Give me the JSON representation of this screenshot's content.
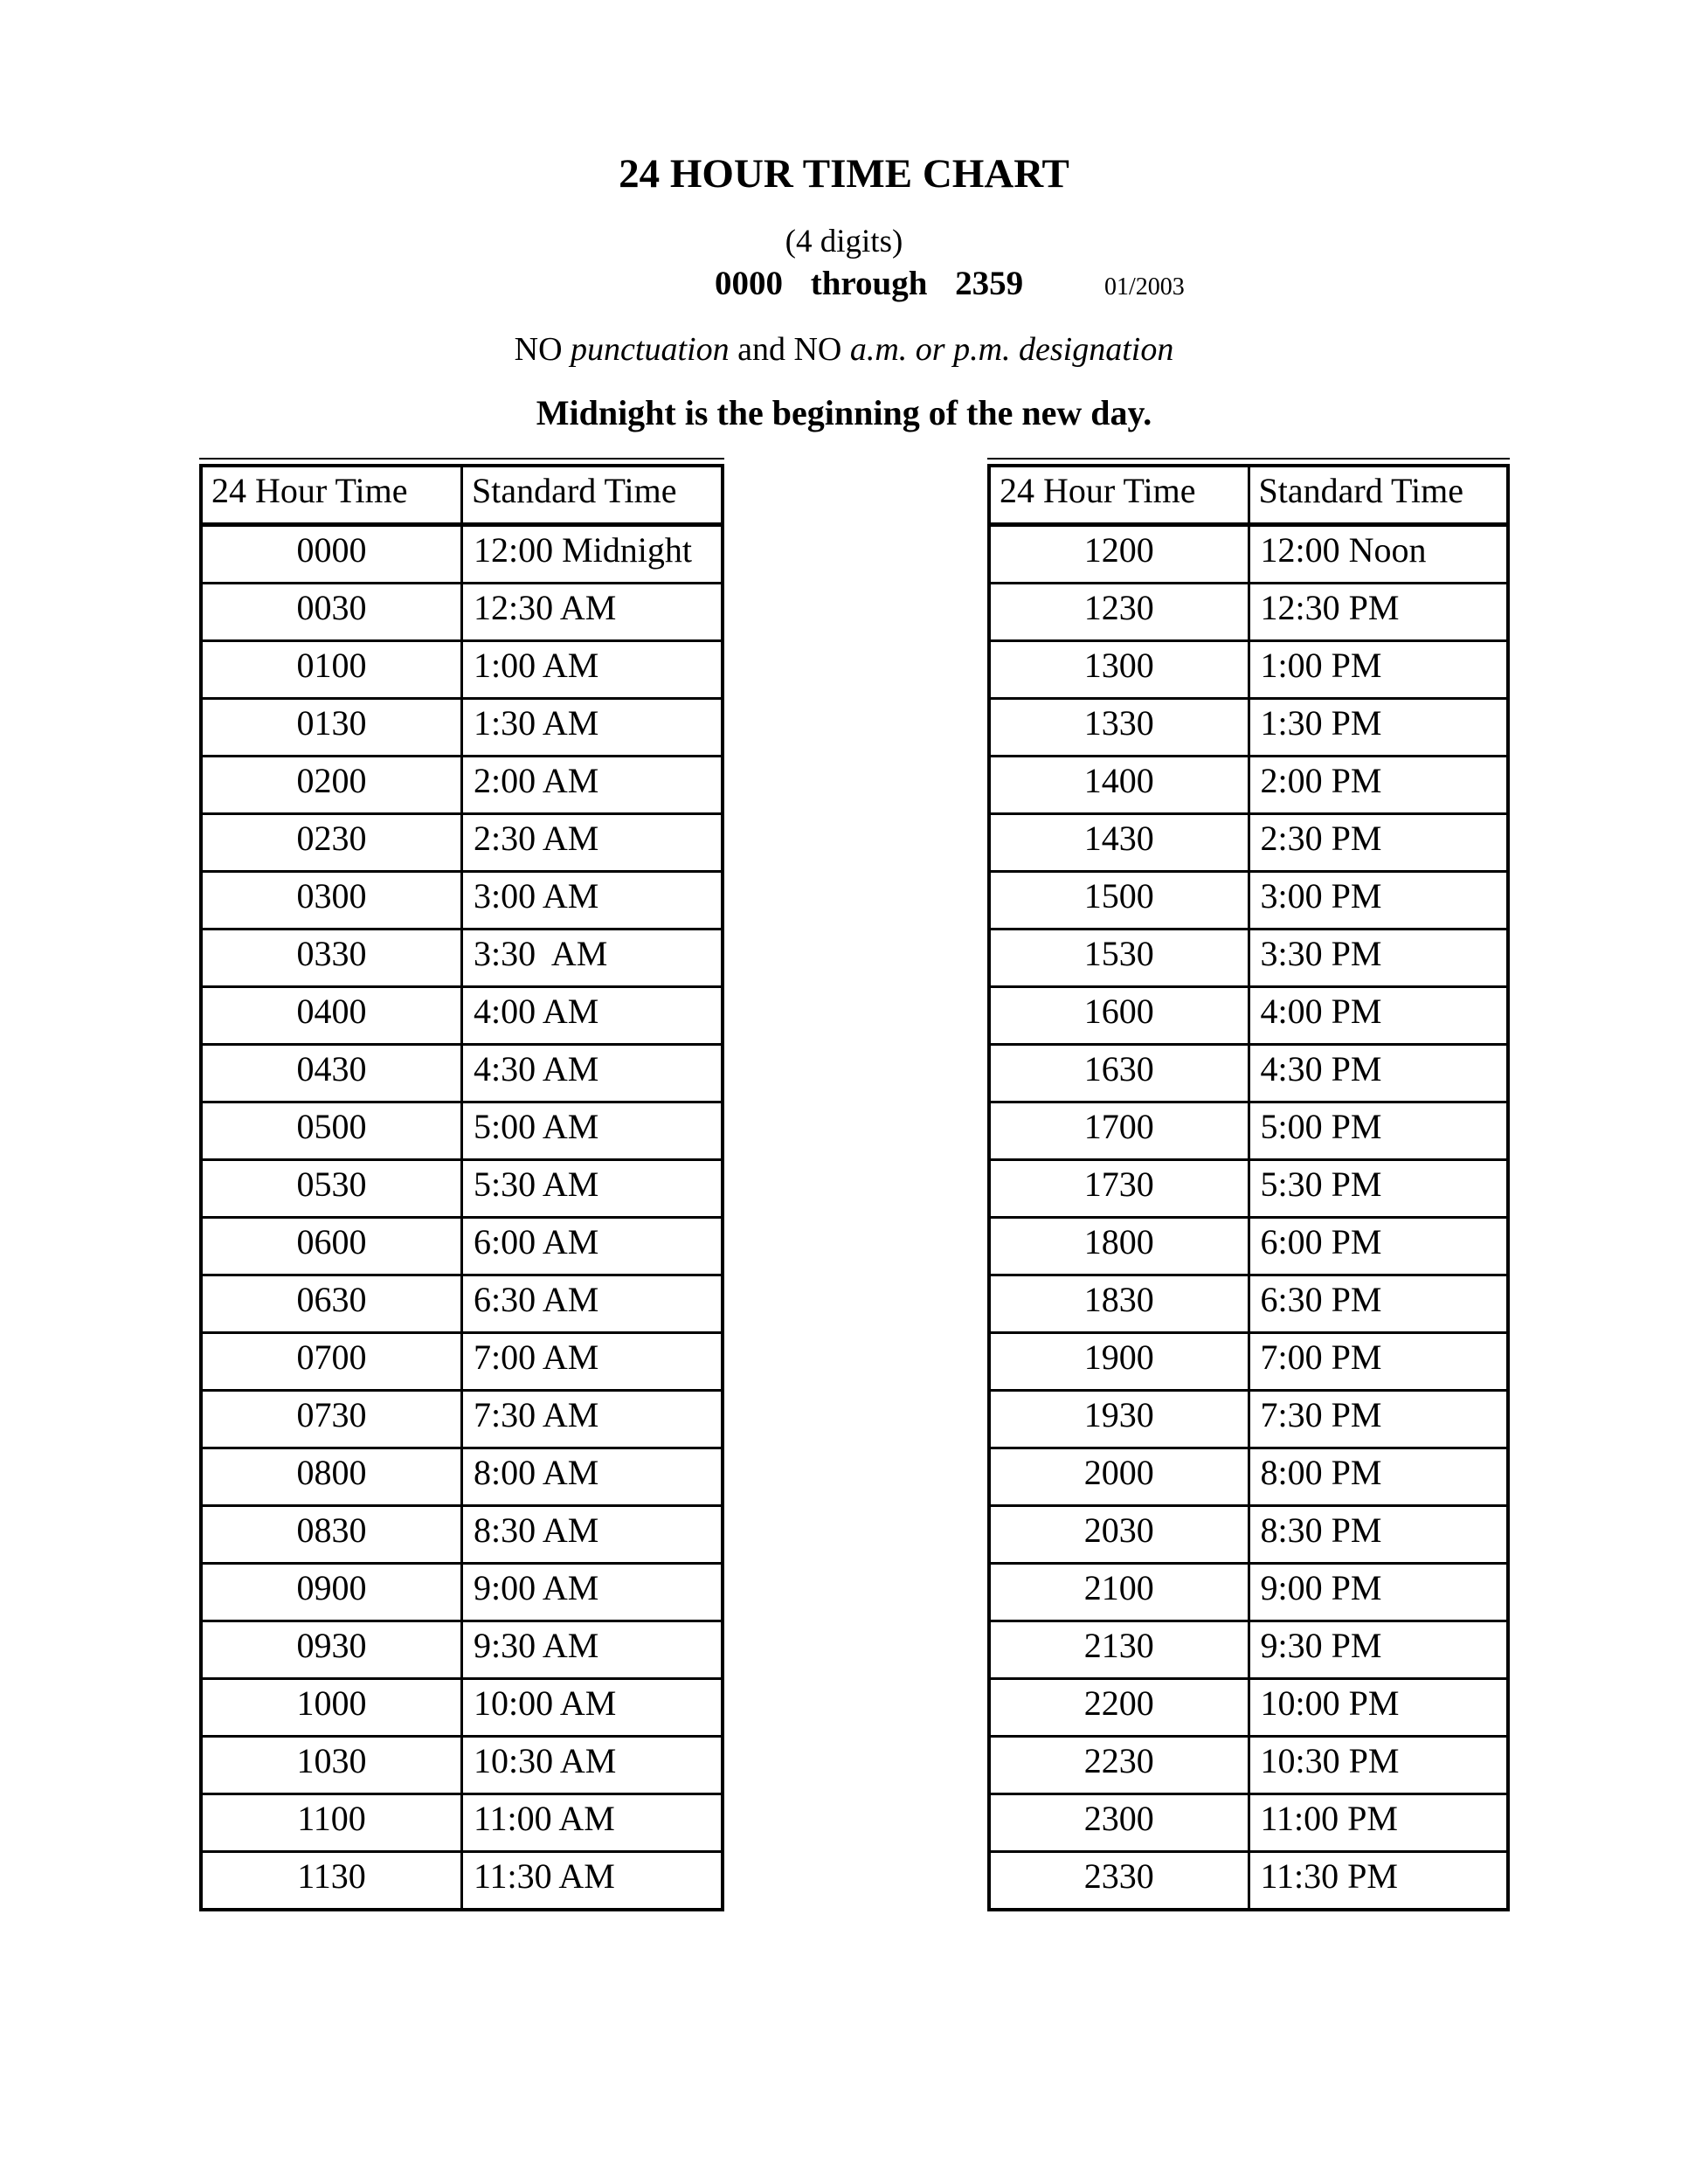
{
  "header": {
    "title": "24 HOUR TIME CHART",
    "digits_note": "(4 digits)",
    "range_text": "0000 through 2359",
    "revision_date": "01/2003",
    "punctuation_note_segments": [
      {
        "text": "NO ",
        "italic": false
      },
      {
        "text": "punctuation",
        "italic": true
      },
      {
        "text": " and NO ",
        "italic": false
      },
      {
        "text": "a.m. or p.m. designation",
        "italic": true
      }
    ],
    "midnight_note": "Midnight is the beginning of the new day."
  },
  "tables": [
    {
      "headers": [
        "24 Hour Time",
        "Standard Time"
      ],
      "rows": [
        [
          "0000",
          "12:00 Midnight"
        ],
        [
          "0030",
          "12:30 AM"
        ],
        [
          "0100",
          "1:00 AM"
        ],
        [
          "0130",
          "1:30 AM"
        ],
        [
          "0200",
          "2:00 AM"
        ],
        [
          "0230",
          "2:30 AM"
        ],
        [
          "0300",
          "3:00 AM"
        ],
        [
          "0330",
          "3:30  AM"
        ],
        [
          "0400",
          "4:00 AM"
        ],
        [
          "0430",
          "4:30 AM"
        ],
        [
          "0500",
          "5:00 AM"
        ],
        [
          "0530",
          "5:30 AM"
        ],
        [
          "0600",
          "6:00 AM"
        ],
        [
          "0630",
          "6:30 AM"
        ],
        [
          "0700",
          "7:00 AM"
        ],
        [
          "0730",
          "7:30 AM"
        ],
        [
          "0800",
          "8:00 AM"
        ],
        [
          "0830",
          "8:30 AM"
        ],
        [
          "0900",
          "9:00 AM"
        ],
        [
          "0930",
          "9:30 AM"
        ],
        [
          "1000",
          "10:00 AM"
        ],
        [
          "1030",
          "10:30 AM"
        ],
        [
          "1100",
          "11:00 AM"
        ],
        [
          "1130",
          "11:30 AM"
        ]
      ]
    },
    {
      "headers": [
        "24 Hour Time",
        "Standard Time"
      ],
      "rows": [
        [
          "1200",
          "12:00 Noon"
        ],
        [
          "1230",
          "12:30 PM"
        ],
        [
          "1300",
          "1:00 PM"
        ],
        [
          "1330",
          "1:30 PM"
        ],
        [
          "1400",
          "2:00 PM"
        ],
        [
          "1430",
          "2:30 PM"
        ],
        [
          "1500",
          "3:00 PM"
        ],
        [
          "1530",
          "3:30 PM"
        ],
        [
          "1600",
          "4:00 PM"
        ],
        [
          "1630",
          "4:30 PM"
        ],
        [
          "1700",
          "5:00 PM"
        ],
        [
          "1730",
          "5:30 PM"
        ],
        [
          "1800",
          "6:00 PM"
        ],
        [
          "1830",
          "6:30 PM"
        ],
        [
          "1900",
          "7:00 PM"
        ],
        [
          "1930",
          "7:30 PM"
        ],
        [
          "2000",
          "8:00 PM"
        ],
        [
          "2030",
          "8:30 PM"
        ],
        [
          "2100",
          "9:00 PM"
        ],
        [
          "2130",
          "9:30 PM"
        ],
        [
          "2200",
          "10:00 PM"
        ],
        [
          "2230",
          "10:30 PM"
        ],
        [
          "2300",
          "11:00 PM"
        ],
        [
          "2330",
          "11:30 PM"
        ]
      ]
    }
  ]
}
